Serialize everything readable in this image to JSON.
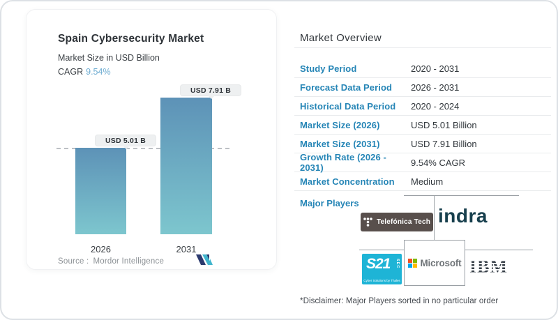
{
  "left_card": {
    "title": "Spain Cybersecurity Market",
    "subtitle": "Market Size in USD Billion",
    "cagr_label": "CAGR",
    "cagr_value": "9.54%",
    "source_label": "Source :",
    "source_value": "Mordor Intelligence"
  },
  "chart_data": {
    "type": "bar",
    "title": "Spain Cybersecurity Market",
    "subtitle": "Market Size in USD Billion",
    "unit": "USD Billion",
    "categories": [
      "2026",
      "2031"
    ],
    "values": [
      5.01,
      7.91
    ],
    "bar_labels": [
      "USD 5.01 B",
      "USD 7.91 B"
    ],
    "cagr": "9.54%",
    "ylim": [
      0,
      7.91
    ],
    "reference_line_value": 5.01,
    "grid": false,
    "legend": false
  },
  "overview": {
    "title": "Market Overview",
    "rows": [
      {
        "label": "Study Period",
        "value": "2020 - 2031"
      },
      {
        "label": "Forecast Data Period",
        "value": "2026 - 2031"
      },
      {
        "label": "Historical Data Period",
        "value": "2020 - 2024"
      },
      {
        "label": "Market Size (2026)",
        "value": "USD 5.01 Billion"
      },
      {
        "label": "Market Size (2031)",
        "value": "USD 7.91 Billion"
      },
      {
        "label": "Growth Rate (2026 - 2031)",
        "value": "9.54% CAGR"
      },
      {
        "label": "Market Concentration",
        "value": "Medium"
      }
    ],
    "major_players_label": "Major Players",
    "players": {
      "telefonica": {
        "name": "Telefónica Tech"
      },
      "indra": {
        "name": "indra"
      },
      "s21sec": {
        "name": "S21sec",
        "main": "S21",
        "side": "SEC",
        "tagline": "Cyber Solutions by Thales"
      },
      "microsoft": {
        "name": "Microsoft"
      },
      "ibm": {
        "name": "IBM"
      }
    },
    "disclaimer": "*Disclaimer: Major Players sorted in no particular order"
  },
  "colors": {
    "bar_top": "#5d92b7",
    "bar_bottom": "#7dc6ce",
    "accent_blue": "#2585b6",
    "cagr_blue": "#6fadd2",
    "dashed_line": "#bcc0c4",
    "telefonica_bg": "#584f4c",
    "indra": "#173f4d",
    "s21_cyan": "#1eb4d6",
    "ibm": "#353d46",
    "microsoft_squares": [
      "#f25022",
      "#7fba00",
      "#00a4ef",
      "#ffb900"
    ],
    "mordor_navy": "#2b3a6e",
    "mordor_teal": "#41b5cd"
  }
}
